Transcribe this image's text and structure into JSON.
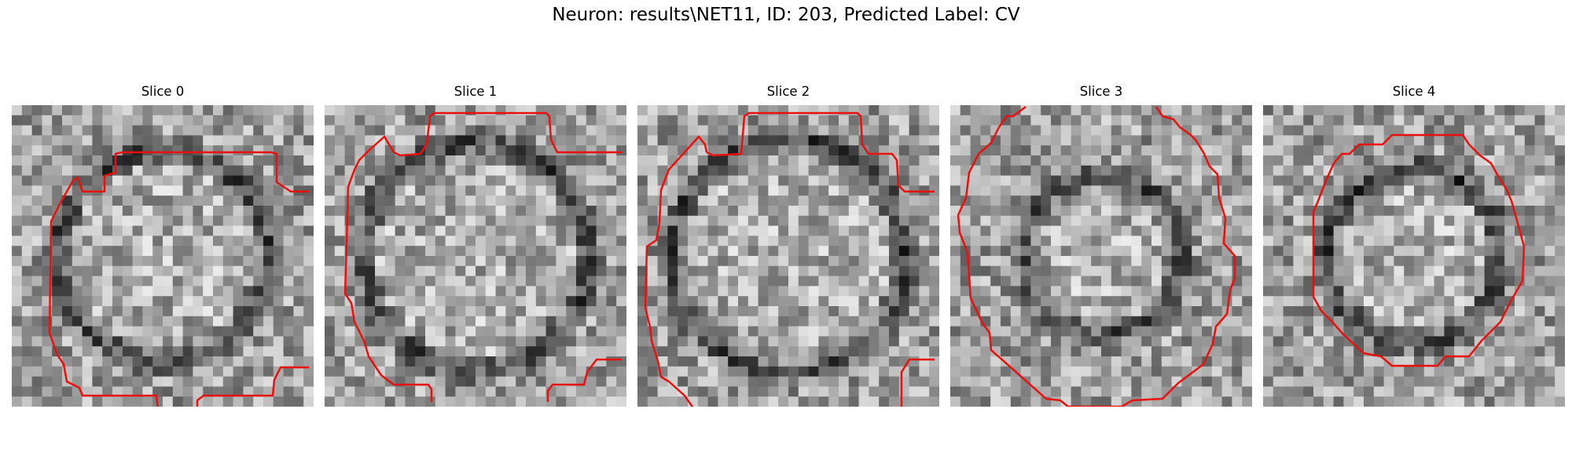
{
  "figure": {
    "title": "Neuron: results\\NET11, ID: 203, Predicted Label: CV",
    "contour_color": "#e8110e"
  },
  "panels": [
    {
      "title": "Slice 0",
      "image": "grayscale-em-tile-with-red-contour",
      "seed": 11,
      "ring": 0.72
    },
    {
      "title": "Slice 1",
      "image": "grayscale-em-tile-with-red-contour",
      "seed": 23,
      "ring": 0.78
    },
    {
      "title": "Slice 2",
      "image": "grayscale-em-tile-with-red-contour",
      "seed": 37,
      "ring": 0.8
    },
    {
      "title": "Slice 3",
      "image": "grayscale-em-tile-with-red-contour",
      "seed": 41,
      "ring": 0.55
    },
    {
      "title": "Slice 4",
      "image": "grayscale-em-tile-with-red-contour",
      "seed": 53,
      "ring": 0.6
    }
  ]
}
